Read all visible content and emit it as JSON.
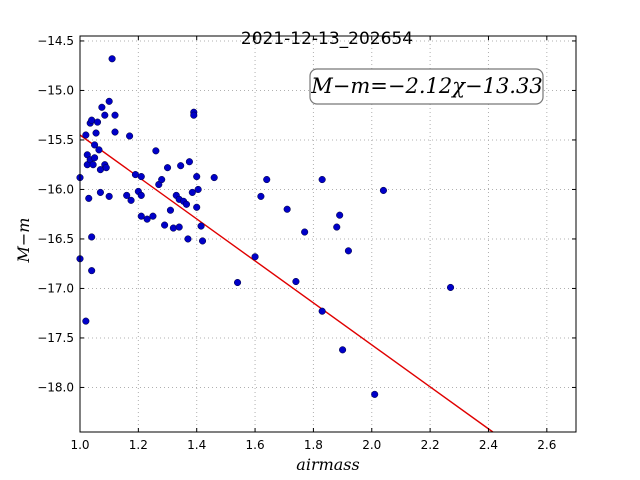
{
  "chart_data": {
    "type": "scatter",
    "title": "2021-12-13_202654",
    "xlabel": "airmass",
    "ylabel": "M−m",
    "xlim": [
      1.0,
      2.7
    ],
    "ylim": [
      -18.45,
      -14.45
    ],
    "x_ticks": [
      "1.0",
      "1.2",
      "1.4",
      "1.6",
      "1.8",
      "2.0",
      "2.2",
      "2.4",
      "2.6"
    ],
    "y_ticks": [
      "−14.5",
      "−15.0",
      "−15.5",
      "−16.0",
      "−16.5",
      "−17.0",
      "−17.5",
      "−18.0"
    ],
    "grid": true,
    "annotation": "M−m=−2.12χ−13.33",
    "annotation_position": "top-right",
    "fit_line": {
      "slope": -2.12,
      "intercept": -13.33,
      "color": "#e00000"
    },
    "marker_color": "#0000c8",
    "points": [
      [
        1.0,
        -15.88
      ],
      [
        1.0,
        -16.7
      ],
      [
        1.02,
        -17.33
      ],
      [
        1.02,
        -15.45
      ],
      [
        1.025,
        -15.65
      ],
      [
        1.025,
        -15.75
      ],
      [
        1.03,
        -16.09
      ],
      [
        1.035,
        -15.33
      ],
      [
        1.035,
        -15.7
      ],
      [
        1.04,
        -15.3
      ],
      [
        1.04,
        -16.48
      ],
      [
        1.04,
        -16.82
      ],
      [
        1.045,
        -15.75
      ],
      [
        1.05,
        -15.55
      ],
      [
        1.05,
        -15.68
      ],
      [
        1.055,
        -15.43
      ],
      [
        1.06,
        -15.32
      ],
      [
        1.065,
        -15.6
      ],
      [
        1.07,
        -15.8
      ],
      [
        1.07,
        -16.03
      ],
      [
        1.075,
        -15.17
      ],
      [
        1.085,
        -15.25
      ],
      [
        1.085,
        -15.75
      ],
      [
        1.09,
        -15.78
      ],
      [
        1.1,
        -15.11
      ],
      [
        1.1,
        -16.07
      ],
      [
        1.11,
        -14.68
      ],
      [
        1.12,
        -15.25
      ],
      [
        1.12,
        -15.42
      ],
      [
        1.16,
        -16.06
      ],
      [
        1.17,
        -15.46
      ],
      [
        1.175,
        -16.11
      ],
      [
        1.19,
        -15.85
      ],
      [
        1.2,
        -16.02
      ],
      [
        1.21,
        -16.06
      ],
      [
        1.21,
        -15.87
      ],
      [
        1.21,
        -16.27
      ],
      [
        1.23,
        -16.3
      ],
      [
        1.25,
        -16.27
      ],
      [
        1.26,
        -15.61
      ],
      [
        1.27,
        -15.95
      ],
      [
        1.28,
        -15.9
      ],
      [
        1.29,
        -16.36
      ],
      [
        1.3,
        -15.78
      ],
      [
        1.31,
        -16.21
      ],
      [
        1.32,
        -16.39
      ],
      [
        1.33,
        -16.06
      ],
      [
        1.34,
        -16.1
      ],
      [
        1.34,
        -16.38
      ],
      [
        1.345,
        -15.76
      ],
      [
        1.355,
        -16.12
      ],
      [
        1.365,
        -16.15
      ],
      [
        1.37,
        -16.5
      ],
      [
        1.375,
        -15.72
      ],
      [
        1.385,
        -16.03
      ],
      [
        1.39,
        -15.22
      ],
      [
        1.39,
        -15.25
      ],
      [
        1.4,
        -16.18
      ],
      [
        1.4,
        -15.87
      ],
      [
        1.405,
        -16.0
      ],
      [
        1.415,
        -16.37
      ],
      [
        1.42,
        -16.52
      ],
      [
        1.46,
        -15.88
      ],
      [
        1.54,
        -16.94
      ],
      [
        1.6,
        -16.68
      ],
      [
        1.62,
        -16.07
      ],
      [
        1.64,
        -15.9
      ],
      [
        1.71,
        -16.2
      ],
      [
        1.74,
        -16.93
      ],
      [
        1.77,
        -16.43
      ],
      [
        1.83,
        -15.9
      ],
      [
        1.83,
        -17.23
      ],
      [
        1.88,
        -16.38
      ],
      [
        1.89,
        -16.26
      ],
      [
        1.9,
        -17.62
      ],
      [
        1.92,
        -16.62
      ],
      [
        2.01,
        -18.07
      ],
      [
        2.04,
        -16.01
      ],
      [
        2.27,
        -16.99
      ]
    ]
  }
}
